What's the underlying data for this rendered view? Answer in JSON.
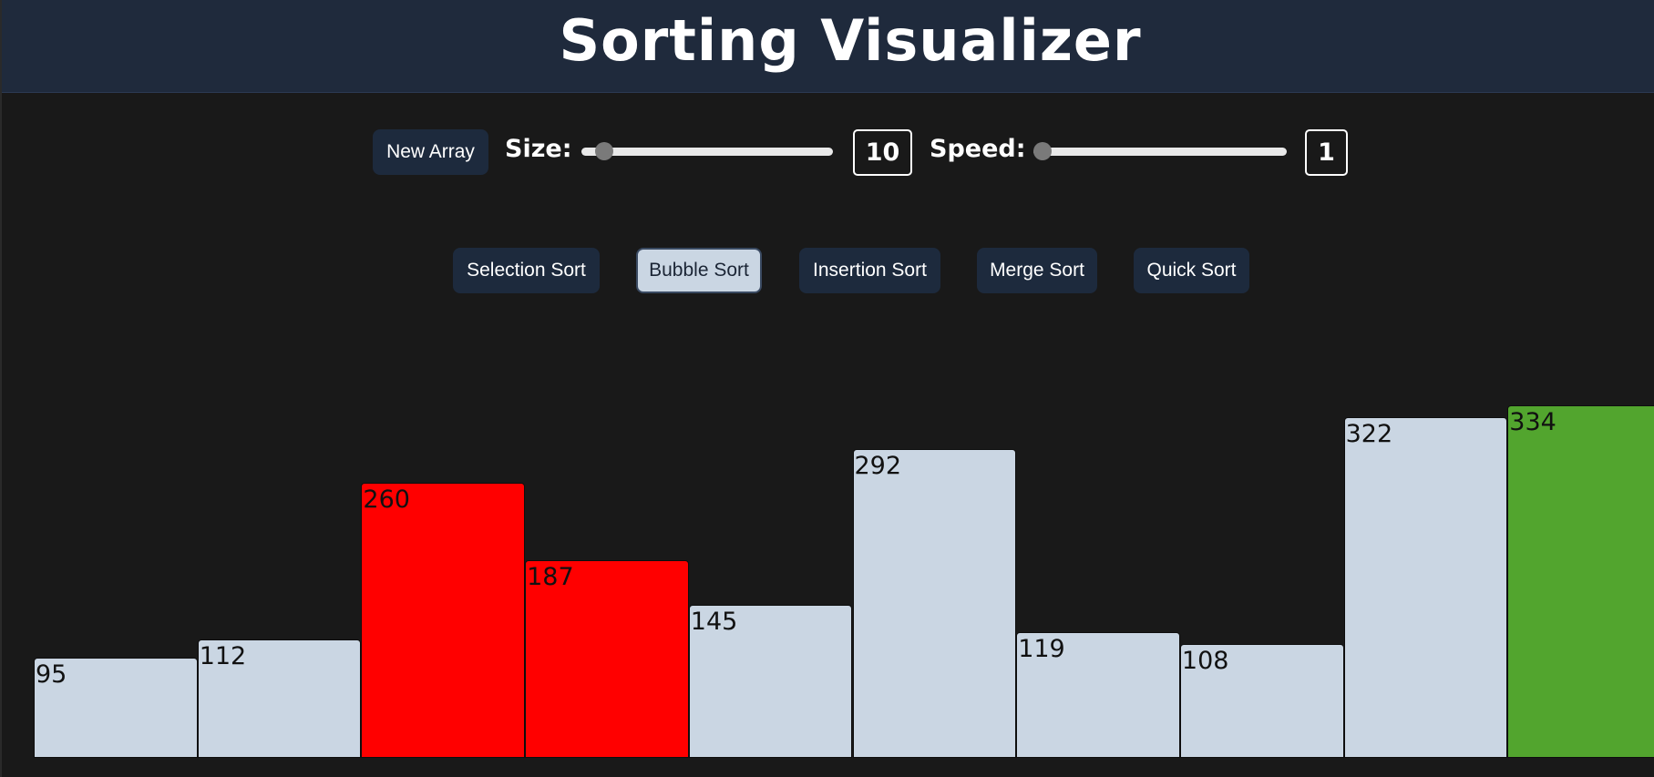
{
  "header": {
    "title": "Sorting Visualizer"
  },
  "controls": {
    "new_array_label": "New Array",
    "size_label": "Size:",
    "size_value": "10",
    "size_fraction": 0.06,
    "speed_label": "Speed:",
    "speed_value": "1",
    "speed_fraction": 0.0
  },
  "algorithms": [
    {
      "label": "Selection Sort",
      "active": false
    },
    {
      "label": "Bubble Sort",
      "active": true
    },
    {
      "label": "Insertion Sort",
      "active": false
    },
    {
      "label": "Merge Sort",
      "active": false
    },
    {
      "label": "Quick Sort",
      "active": false
    }
  ],
  "colors": {
    "header_bg": "#1f2a3c",
    "page_bg": "#191919",
    "bar_default": "#cad6e3",
    "bar_compare": "#ff0000",
    "bar_sorted": "#52a52e"
  },
  "array": {
    "values": [
      95,
      112,
      260,
      187,
      145,
      292,
      119,
      108,
      322,
      334
    ],
    "states": [
      "default",
      "default",
      "compare",
      "compare",
      "default",
      "default",
      "default",
      "default",
      "default",
      "sorted"
    ]
  }
}
